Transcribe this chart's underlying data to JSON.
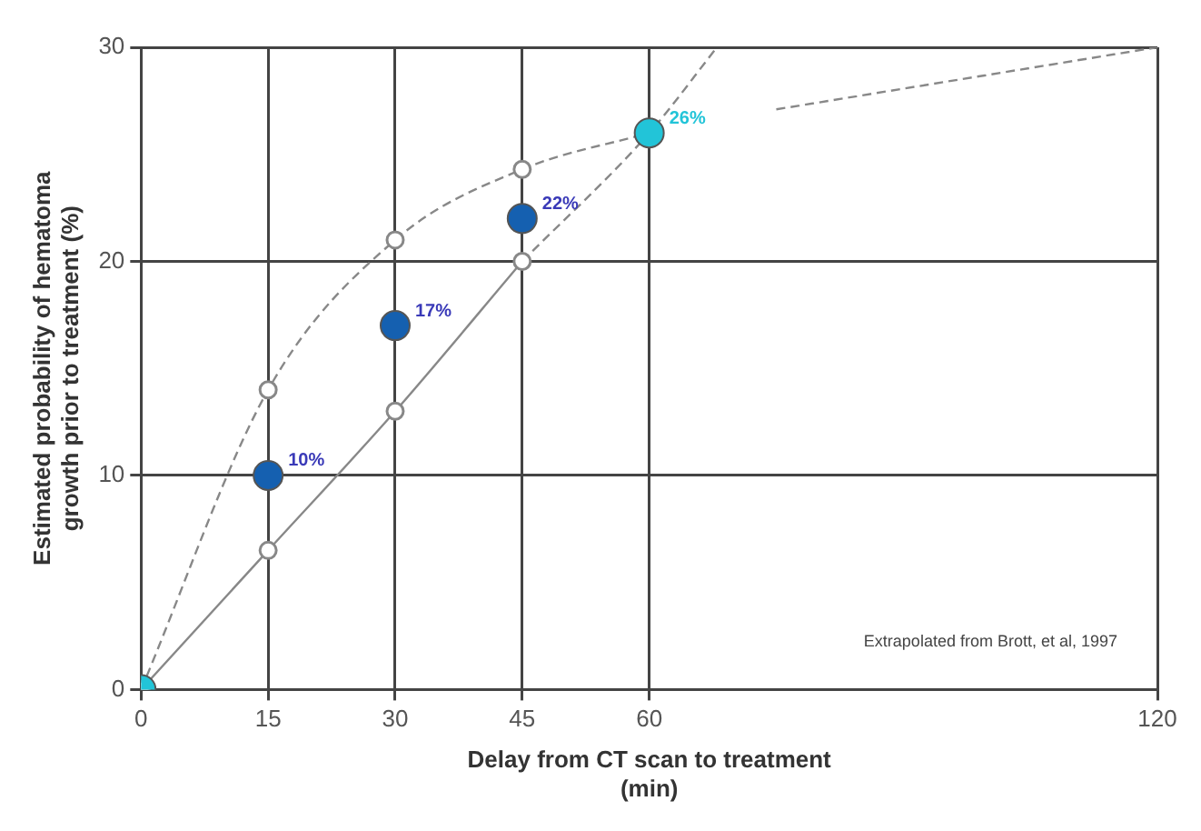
{
  "chart_data": {
    "type": "line",
    "xlabel": "Delay from CT scan to treatment\n(min)",
    "ylabel": "Estimated probability of hematoma\ngrowth prior to treatment (%)",
    "xlim": [
      0,
      120
    ],
    "xticks": [
      0,
      15,
      30,
      45,
      60,
      120
    ],
    "ylim": [
      0,
      30
    ],
    "yticks": [
      0,
      10,
      20,
      30
    ],
    "grid": true,
    "legend": false,
    "annotations": [
      "Extrapolated from Brott, et al, 1997"
    ],
    "series": [
      {
        "x": [
          0,
          15,
          30,
          45,
          60
        ],
        "values": [
          0,
          14,
          21,
          24.3,
          26
        ],
        "color": "#888888",
        "line_style": "dashed",
        "marker": "circle"
      },
      {
        "x": [
          0,
          15,
          30,
          45
        ],
        "values": [
          0,
          6.5,
          13,
          20
        ],
        "color": "#888888",
        "line_style": "solid",
        "marker": "circle"
      },
      {
        "x": [
          45,
          60,
          68
        ],
        "values": [
          20,
          26,
          30
        ],
        "color": "#888888",
        "line_style": "dashed",
        "marker": "none"
      },
      {
        "x": [
          75,
          120
        ],
        "values": [
          27.1,
          30
        ],
        "color": "#888888",
        "line_style": "dashed",
        "marker": "none"
      },
      {
        "type": "scatter",
        "x": [
          0,
          15,
          30,
          45,
          60
        ],
        "values": [
          0,
          10,
          17,
          22,
          26
        ],
        "colors": [
          "#22c4d8",
          "#1560b0",
          "#1560b0",
          "#1560b0",
          "#22c4d8"
        ],
        "value_labels": [
          null,
          "10%",
          "17%",
          "22%",
          "26%"
        ],
        "marker": "circle"
      }
    ]
  }
}
